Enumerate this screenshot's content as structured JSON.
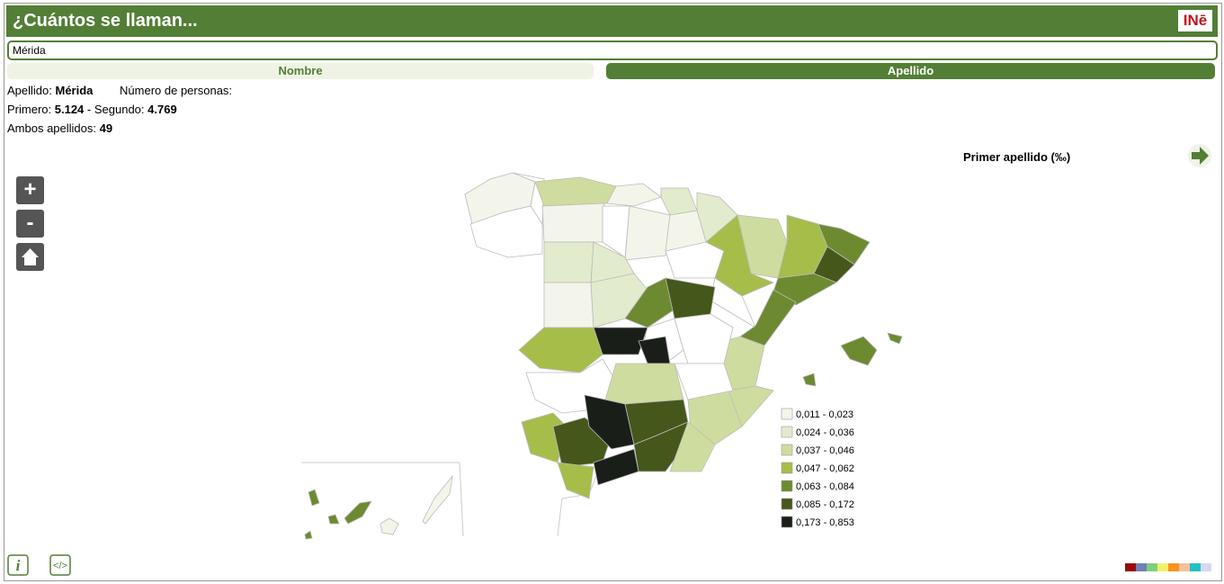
{
  "header": {
    "title": "¿Cuántos se llaman...",
    "logo": "INē"
  },
  "search": {
    "value": "Mérida"
  },
  "tabs": [
    "Nombre",
    "Apellido"
  ],
  "info": {
    "surname_label": "Apellido:",
    "surname": "Mérida",
    "people_label": "Número de personas:",
    "first_label": "Primero:",
    "first": "5.124",
    "second_label": "- Segundo:",
    "second": "4.769",
    "both_label": "Ambos apellidos:",
    "both": "49"
  },
  "map": {
    "title": "Primer apellido (‰)",
    "zoom_in": "+",
    "zoom_out": "-",
    "legend": [
      {
        "label": "0,011 - 0,023",
        "color": "#f3f5ea"
      },
      {
        "label": "0,024 - 0,036",
        "color": "#e3ebcd"
      },
      {
        "label": "0,037 - 0,046",
        "color": "#cfdc9f"
      },
      {
        "label": "0,047 - 0,062",
        "color": "#a6bd4a"
      },
      {
        "label": "0,063 - 0,084",
        "color": "#6d8a30"
      },
      {
        "label": "0,085 - 0,172",
        "color": "#46571b"
      },
      {
        "label": "0,173 - 0,853",
        "color": "#1a1e18"
      }
    ]
  }
}
